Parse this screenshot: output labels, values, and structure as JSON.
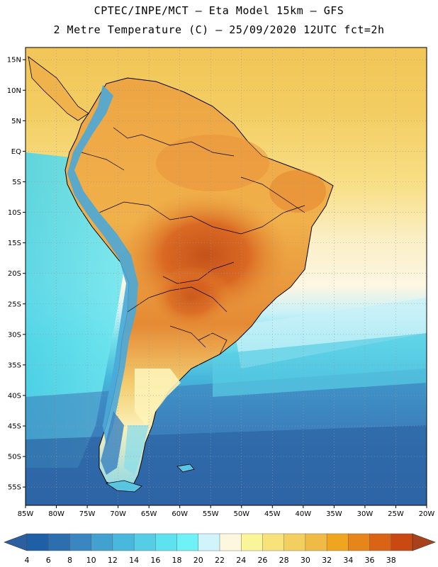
{
  "title": {
    "line1": "CPTEC/INPE/MCT –  Eta Model 15km – GFS",
    "line2": "2 Metre Temperature (C) – 25/09/2020 12UTC fct=2h"
  },
  "map": {
    "lon_range": [
      -85,
      -20
    ],
    "lat_range": [
      -58,
      17
    ],
    "lat_ticks": [
      "15N",
      "10N",
      "5N",
      "EQ",
      "5S",
      "10S",
      "15S",
      "20S",
      "25S",
      "30S",
      "35S",
      "40S",
      "45S",
      "50S",
      "55S"
    ],
    "lat_values": [
      15,
      10,
      5,
      0,
      -5,
      -10,
      -15,
      -20,
      -25,
      -30,
      -35,
      -40,
      -45,
      -50,
      -55
    ],
    "lon_ticks": [
      "85W",
      "80W",
      "75W",
      "70W",
      "65W",
      "60W",
      "55W",
      "50W",
      "45W",
      "40W",
      "35W",
      "30W",
      "25W",
      "20W"
    ],
    "lon_values": [
      -85,
      -80,
      -75,
      -70,
      -65,
      -60,
      -55,
      -50,
      -45,
      -40,
      -35,
      -30,
      -25,
      -20
    ],
    "ocean_colors": {
      "north_atlantic": "#f2cc5a",
      "subtropical": "#fbf1d6",
      "cool_pacific": "#5ee3ea",
      "cold_south": "#2f6fae"
    },
    "land_colors": {
      "north": "#f0b64a",
      "hot_core": "#dc6a26",
      "hottest": "#c8531c",
      "andes": "#4aa6d6",
      "patagonia": "#fdf3b8"
    }
  },
  "colorbar": {
    "labels": [
      "4",
      "6",
      "8",
      "10",
      "12",
      "14",
      "16",
      "18",
      "20",
      "22",
      "24",
      "26",
      "28",
      "30",
      "32",
      "34",
      "36",
      "38"
    ],
    "colors": [
      "#1f5fa5",
      "#2d6fae",
      "#3a86c0",
      "#42a1cf",
      "#49b8dc",
      "#55cde6",
      "#5fe2ef",
      "#6ef2f8",
      "#cff4fb",
      "#fdf7dd",
      "#fbf59a",
      "#f8e27a",
      "#f3cf5f",
      "#efba46",
      "#f0a51e",
      "#e6861a",
      "#da6316",
      "#c84912"
    ],
    "low_arrow_color": "#2a5fa0",
    "high_arrow_color": "#a8421a"
  }
}
